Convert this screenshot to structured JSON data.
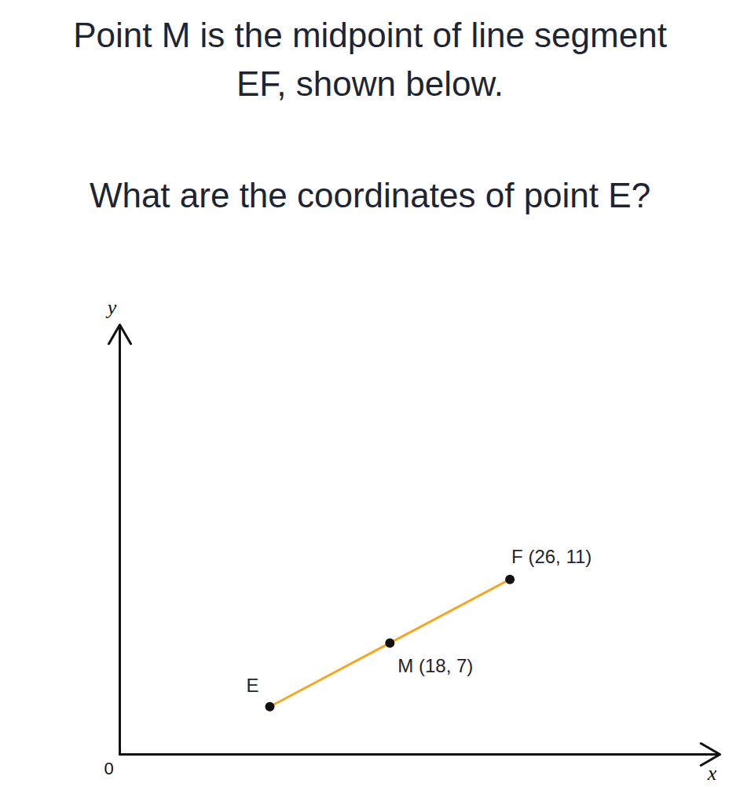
{
  "header": {
    "title": "Point M is the midpoint of line segment EF, shown below.",
    "subtitle": "What are the coordinates of point E?"
  },
  "chart_data": {
    "type": "line",
    "x": [
      10,
      18,
      26
    ],
    "values": [
      3,
      7,
      11
    ],
    "point_labels": [
      "E",
      "M (18, 7)",
      "F (26, 11)"
    ],
    "color": "#f5a623",
    "marker": "circle",
    "x_label": "x",
    "y_label": "y",
    "xlim": [
      0,
      40
    ],
    "ylim": [
      0,
      27
    ],
    "xticks": [
      0
    ],
    "yticks": [],
    "tick_labels": "x",
    "grid": false
  }
}
